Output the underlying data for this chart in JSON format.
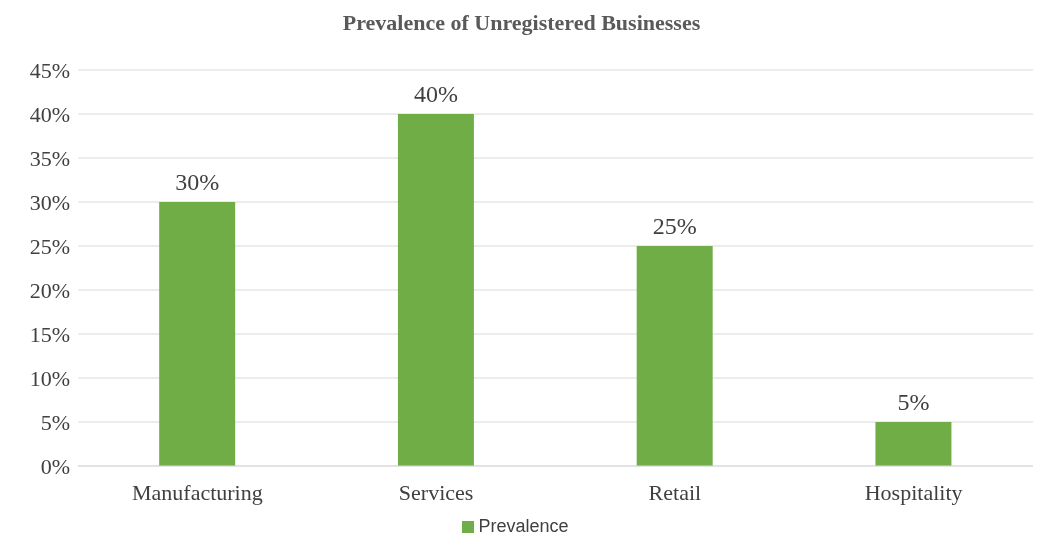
{
  "chart_data": {
    "type": "bar",
    "title": "Prevalence of Unregistered Businesses",
    "categories": [
      "Manufacturing",
      "Services",
      "Retail",
      "Hospitality"
    ],
    "series": [
      {
        "name": "Prevalence",
        "color": "#70ad47",
        "values": [
          30,
          40,
          25,
          5
        ],
        "value_labels": [
          "30%",
          "40%",
          "25%",
          "5%"
        ]
      }
    ],
    "ylim": [
      0,
      45
    ],
    "yticks": [
      {
        "value": 0,
        "label": "0%"
      },
      {
        "value": 5,
        "label": "5%"
      },
      {
        "value": 10,
        "label": "10%"
      },
      {
        "value": 15,
        "label": "15%"
      },
      {
        "value": 20,
        "label": "20%"
      },
      {
        "value": 25,
        "label": "25%"
      },
      {
        "value": 30,
        "label": "30%"
      },
      {
        "value": 35,
        "label": "35%"
      },
      {
        "value": 40,
        "label": "40%"
      },
      {
        "value": 45,
        "label": "45%"
      }
    ],
    "grid": "y",
    "legend": "bottom"
  }
}
